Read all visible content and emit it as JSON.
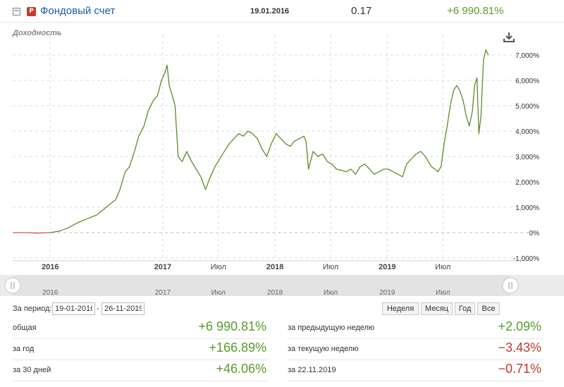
{
  "header": {
    "collapse_symbol": "−",
    "fund_icon_letter": "P",
    "fund_name": "Фондовый счет",
    "date": "19.01.2016",
    "price": "0.17",
    "change": "+6 990.81%"
  },
  "yield_label": "Доходность",
  "download_icon": "download-icon",
  "colors": {
    "line": "#5b8c2a",
    "negative_line": "#d9534f",
    "positive": "#5a9b2c",
    "negative": "#c0392b",
    "grid": "#dddddd"
  },
  "chart_data": {
    "type": "line",
    "series": [
      {
        "x": [
          "2015-09-01",
          "2015-10-15",
          "2015-11-20",
          "2016-01-01",
          "2016-02-01",
          "2016-03-01",
          "2016-04-01",
          "2016-05-01",
          "2016-06-01",
          "2016-07-01",
          "2016-08-01",
          "2016-08-15",
          "2016-09-01",
          "2016-09-15",
          "2016-10-01",
          "2016-10-15",
          "2016-11-01",
          "2016-11-15",
          "2016-12-01",
          "2016-12-15",
          "2016-12-28",
          "2017-01-08",
          "2017-01-15",
          "2017-01-22",
          "2017-02-01",
          "2017-02-10",
          "2017-02-20",
          "2017-03-05",
          "2017-03-20",
          "2017-04-05",
          "2017-04-20",
          "2017-05-05",
          "2017-05-20",
          "2017-06-05",
          "2017-06-20",
          "2017-07-05",
          "2017-07-20",
          "2017-08-05",
          "2017-08-20",
          "2017-09-05",
          "2017-09-20",
          "2017-10-05",
          "2017-10-20",
          "2017-11-05",
          "2017-11-20",
          "2017-12-05",
          "2017-12-20",
          "2018-01-05",
          "2018-01-20",
          "2018-02-05",
          "2018-02-20",
          "2018-03-05",
          "2018-03-20",
          "2018-04-05",
          "2018-04-12",
          "2018-04-20",
          "2018-05-05",
          "2018-05-20",
          "2018-06-05",
          "2018-06-20",
          "2018-07-05",
          "2018-07-20",
          "2018-08-05",
          "2018-08-20",
          "2018-09-05",
          "2018-09-20",
          "2018-10-05",
          "2018-10-20",
          "2018-11-05",
          "2018-11-20",
          "2018-12-05",
          "2018-12-20",
          "2019-01-05",
          "2019-01-20",
          "2019-02-05",
          "2019-02-20",
          "2019-03-05",
          "2019-03-20",
          "2019-04-05",
          "2019-04-20",
          "2019-05-05",
          "2019-05-15",
          "2019-05-25",
          "2019-06-05",
          "2019-06-15",
          "2019-06-25",
          "2019-07-05",
          "2019-07-15",
          "2019-07-25",
          "2019-08-05",
          "2019-08-15",
          "2019-08-25",
          "2019-09-05",
          "2019-09-15",
          "2019-09-25",
          "2019-10-05",
          "2019-10-12",
          "2019-10-20",
          "2019-10-26",
          "2019-11-02",
          "2019-11-10",
          "2019-11-18",
          "2019-11-26"
        ],
        "values": [
          0,
          0,
          -20,
          0,
          60,
          200,
          400,
          550,
          700,
          1000,
          1300,
          1700,
          2400,
          2600,
          3200,
          3800,
          4200,
          4800,
          5200,
          5400,
          6000,
          6300,
          6600,
          5800,
          5400,
          5000,
          3000,
          2800,
          3200,
          2800,
          2500,
          2200,
          1700,
          2200,
          2600,
          2900,
          3200,
          3500,
          3700,
          3900,
          3800,
          4000,
          3900,
          3700,
          3300,
          3000,
          3500,
          3900,
          3700,
          3500,
          3400,
          3600,
          3700,
          3800,
          3600,
          2500,
          3200,
          3000,
          3100,
          2800,
          2700,
          2500,
          2450,
          2400,
          2500,
          2300,
          2600,
          2700,
          2500,
          2300,
          2400,
          2500,
          2500,
          2400,
          2300,
          2200,
          2700,
          2900,
          3100,
          3200,
          3000,
          2800,
          2600,
          2500,
          2400,
          2600,
          3500,
          4200,
          5000,
          5600,
          5800,
          5600,
          5200,
          4600,
          4200,
          4800,
          5800,
          6100,
          3900,
          4600,
          6800,
          7200,
          7000
        ],
        "negative_segment_until": "2016-01-01"
      }
    ],
    "yticks": [
      "-1,000%",
      "0%",
      "1,000%",
      "2,000%",
      "3,000%",
      "4,000%",
      "5,000%",
      "6,000%",
      "7,000%"
    ],
    "ytick_values": [
      -1000,
      0,
      1000,
      2000,
      3000,
      4000,
      5000,
      6000,
      7000
    ],
    "xticks": [
      {
        "label": "2016",
        "date": "2016-01-01",
        "bold": true
      },
      {
        "label": "2017",
        "date": "2017-01-01",
        "bold": true
      },
      {
        "label": "Июл",
        "date": "2017-07-01",
        "bold": false
      },
      {
        "label": "2018",
        "date": "2018-01-01",
        "bold": true
      },
      {
        "label": "Июл",
        "date": "2018-07-01",
        "bold": false
      },
      {
        "label": "2019",
        "date": "2019-01-01",
        "bold": true
      },
      {
        "label": "Июл",
        "date": "2019-07-01",
        "bold": false
      }
    ],
    "navigator_ticks": [
      "2016",
      "2017",
      "Июл",
      "2018",
      "Июл",
      "2019",
      "Июл"
    ],
    "x_range": [
      "2015-09-01",
      "2019-12-31"
    ],
    "ylim": [
      -1000,
      7500
    ],
    "grid": true
  },
  "period": {
    "label": "За период:",
    "from": "19-01-2016",
    "separator": "-",
    "to": "26-11-2019",
    "buttons": [
      "Неделя",
      "Месяц",
      "Год",
      "Все"
    ]
  },
  "stats": {
    "left": [
      {
        "label": "общая",
        "value": "+6 990.81%",
        "sign": "pos"
      },
      {
        "label": "за год",
        "value": "+166.89%",
        "sign": "pos"
      },
      {
        "label": "за 30 дней",
        "value": "+46.06%",
        "sign": "pos"
      }
    ],
    "right": [
      {
        "label": "за предыдущую неделю",
        "value": "+2.09%",
        "sign": "pos"
      },
      {
        "label": "за текущую неделю",
        "value": "−3.43%",
        "sign": "neg"
      },
      {
        "label": "за 22.11.2019",
        "value": "−0.71%",
        "sign": "neg"
      }
    ]
  }
}
